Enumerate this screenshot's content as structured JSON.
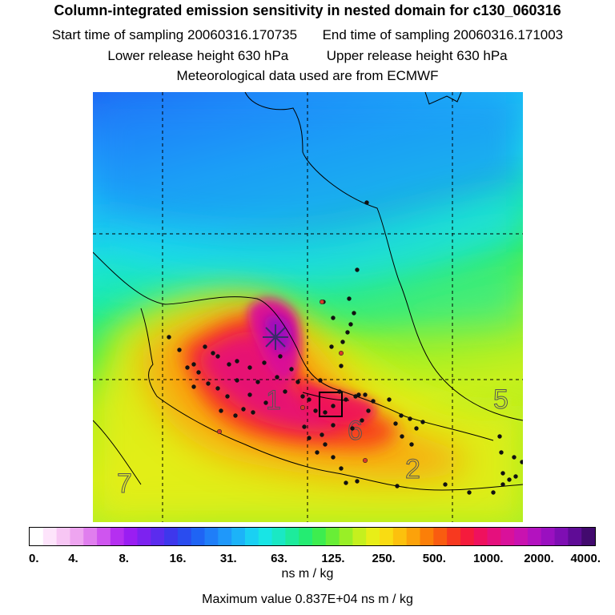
{
  "header": {
    "title": "Column-integrated emission sensitivity in nested domain for c130_060316",
    "start_label": "Start time of sampling",
    "start_value": "20060316.170735",
    "end_label": "End time of sampling",
    "end_value": "20060316.171003",
    "lower_label": "Lower release height",
    "lower_value": "630 hPa",
    "upper_label": "Upper release height",
    "upper_value": "630 hPa",
    "met_note": "Meteorological data used are from ECMWF"
  },
  "map": {
    "cluster_labels": [
      "1",
      "2",
      "5",
      "6",
      "7"
    ]
  },
  "colorbar": {
    "tick_labels": [
      "0.",
      "4.",
      "8.",
      "16.",
      "31.",
      "63.",
      "125.",
      "250.",
      "500.",
      "1000.",
      "2000.",
      "4000."
    ],
    "colors": [
      "#ffffff",
      "#fde4fb",
      "#f7c6f4",
      "#eea5f0",
      "#e07eee",
      "#cf55ef",
      "#b52ff0",
      "#9a1ef2",
      "#7d22f0",
      "#5b2cee",
      "#3e37ec",
      "#2a4cef",
      "#1f64f4",
      "#1f7ef8",
      "#1f98fa",
      "#1cb3f8",
      "#1ad0f3",
      "#18e5e5",
      "#1ae8c4",
      "#1deb9c",
      "#24ec72",
      "#3ded4f",
      "#68ee36",
      "#99ef26",
      "#c5f01e",
      "#e8ee18",
      "#f9dc12",
      "#fcc10d",
      "#fca20a",
      "#fb7f08",
      "#f95c10",
      "#f7391f",
      "#f51b3c",
      "#ef115e",
      "#e5107d",
      "#d9119a",
      "#c912b0",
      "#b312bf",
      "#9a10c0",
      "#7e0eb3",
      "#5f0c96",
      "#420a6e"
    ],
    "unit": "ns m / kg"
  },
  "footer": {
    "max_label": "Maximum value",
    "max_value": "0.837E+04",
    "max_unit": "ns m / kg"
  },
  "chart_data": {
    "type": "heatmap",
    "title": "Column-integrated emission sensitivity in nested domain for c130_060316",
    "colorbar_ticks": [
      0,
      4,
      8,
      16,
      31,
      63,
      125,
      250,
      500,
      1000,
      2000,
      4000
    ],
    "colorbar_unit": "ns m / kg",
    "maximum_value": 8370,
    "scale": "logarithmic"
  }
}
